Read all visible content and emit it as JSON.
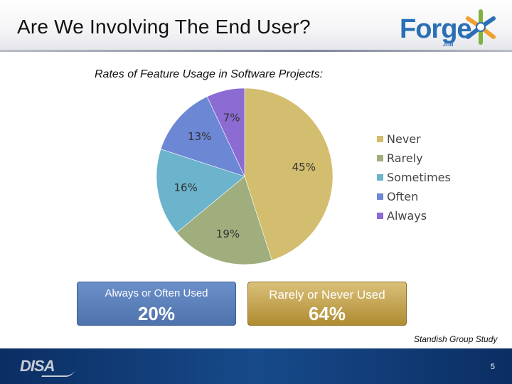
{
  "slide": {
    "title": "Are We Involving The End User?",
    "subtitle": "Rates of Feature Usage in Software Projects:",
    "source": "Standish Group Study",
    "page_number": "5"
  },
  "logo": {
    "text": "Forge",
    "suffix": ".mil"
  },
  "footer": {
    "org_logo": "DISA"
  },
  "chart_data": {
    "type": "pie",
    "title": "",
    "categories": [
      "Never",
      "Rarely",
      "Sometimes",
      "Often",
      "Always"
    ],
    "values": [
      45,
      19,
      16,
      13,
      7
    ],
    "value_labels": [
      "45%",
      "19%",
      "16%",
      "13%",
      "7%"
    ],
    "colors": [
      "#d3bd6e",
      "#9fae7c",
      "#6cb3cc",
      "#6c87d3",
      "#8c6bd3"
    ],
    "legend": "right"
  },
  "summary_boxes": [
    {
      "label": "Always or Often Used",
      "value": "20%",
      "color": "#5a7fbf"
    },
    {
      "label": "Rarely or Never Used",
      "value": "64%",
      "color": "#c7a553"
    }
  ]
}
